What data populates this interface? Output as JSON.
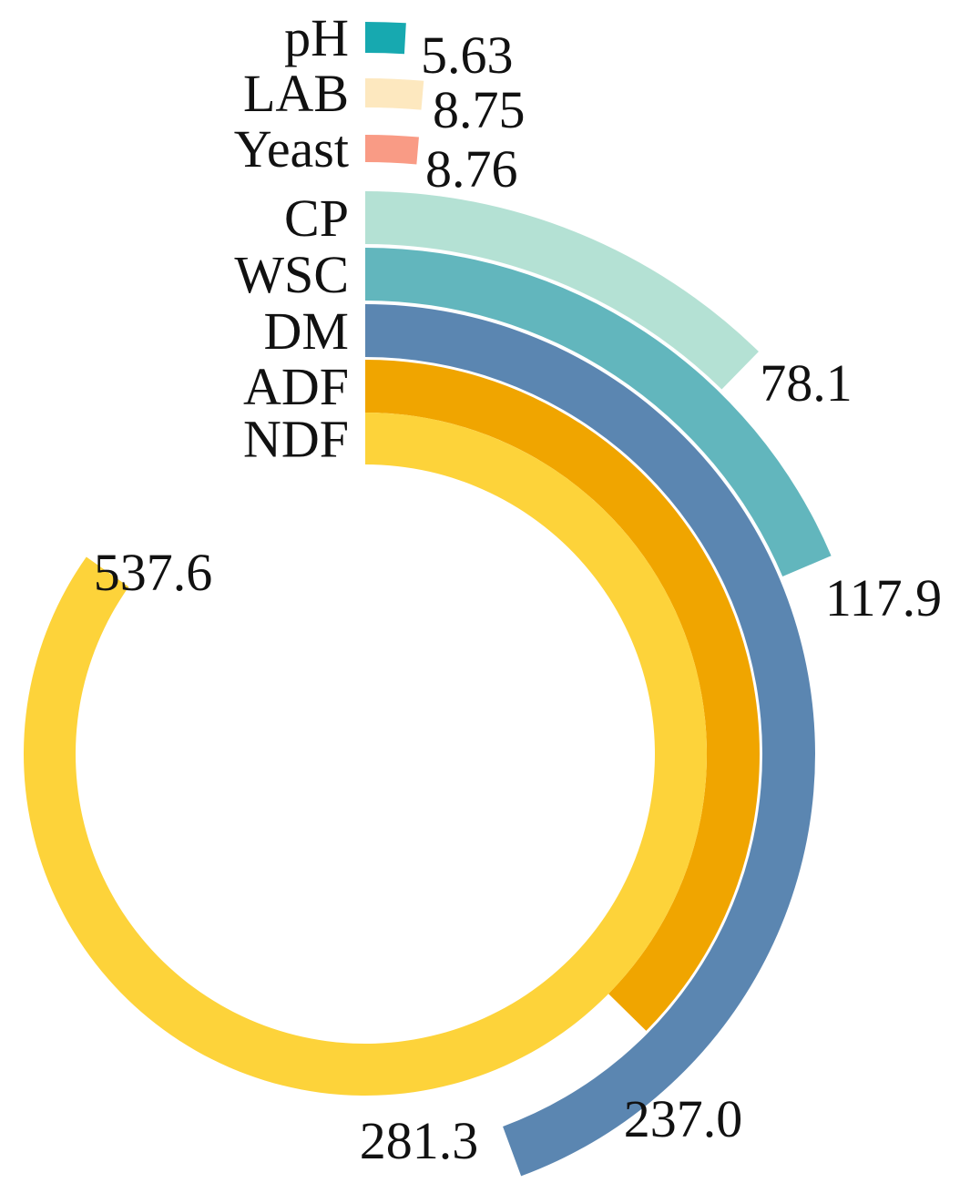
{
  "chart_data": {
    "type": "radial-bar",
    "title": "",
    "categories": [
      "pH",
      "LAB",
      "Yeast",
      "CP",
      "WSC",
      "DM",
      "ADF",
      "NDF"
    ],
    "values": [
      5.63,
      8.75,
      8.76,
      78.1,
      117.9,
      281.3,
      237.0,
      537.6
    ],
    "value_labels": [
      "5.63",
      "8.75",
      "8.76",
      "78.1",
      "117.9",
      "281.3",
      "237.0",
      "537.6"
    ],
    "colors": [
      "#17a9b0",
      "#fde8bf",
      "#f99b85",
      "#b4e1d4",
      "#62b6bd",
      "#5b86b1",
      "#f0a500",
      "#fdd33a"
    ],
    "max_value": 634,
    "start_angle_deg": 0,
    "direction": "clockwise",
    "legend": "none",
    "grid": false
  }
}
